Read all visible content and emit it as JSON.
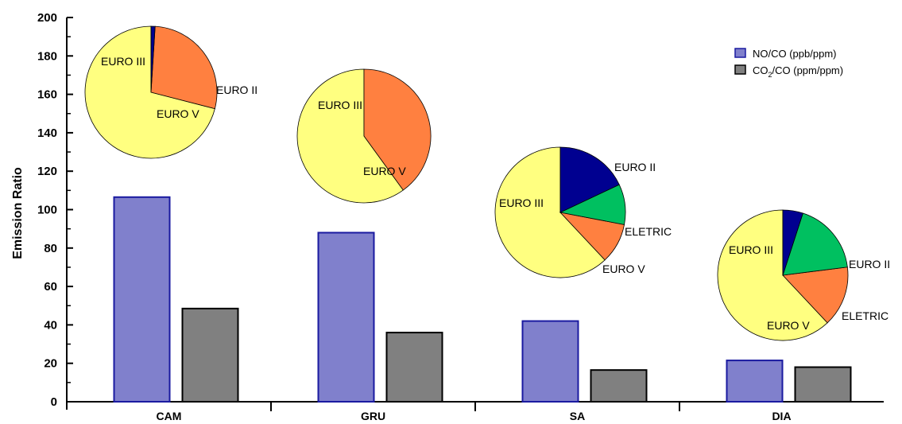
{
  "chart_data": {
    "type": "bar",
    "ylabel": "Emission Ratio",
    "ylim": [
      0,
      200
    ],
    "yticks": [
      0,
      20,
      40,
      60,
      80,
      100,
      120,
      140,
      160,
      180,
      200
    ],
    "grid": false,
    "legend_position": "top-right",
    "categories": [
      "CAM",
      "GRU",
      "SA",
      "DIA"
    ],
    "series": [
      {
        "name": "NO/CO (ppb/ppm)",
        "name_main": "NO/CO (ppb/ppm)",
        "color": "#8080cc",
        "edge_color": "#1a1aa0",
        "values": [
          106.5,
          88,
          42,
          21.5
        ]
      },
      {
        "name": "CO2/CO (ppm/ppm)",
        "name_main": "CO",
        "name_sub": "2",
        "name_rest": "/CO (ppm/ppm)",
        "color": "#808080",
        "edge_color": "#000000",
        "values": [
          48.5,
          36,
          16.5,
          18
        ]
      }
    ],
    "pies": [
      {
        "category": "CAM",
        "slices": [
          {
            "label": "EURO III",
            "value": 71,
            "color": "#ffff80"
          },
          {
            "label": "EURO V",
            "value": 28,
            "color": "#ff8040"
          },
          {
            "label": "EURO II",
            "value": 1,
            "color": "#000090"
          }
        ]
      },
      {
        "category": "GRU",
        "slices": [
          {
            "label": "EURO III",
            "value": 60,
            "color": "#ffff80"
          },
          {
            "label": "EURO V",
            "value": 40,
            "color": "#ff8040"
          }
        ]
      },
      {
        "category": "SA",
        "slices": [
          {
            "label": "EURO III",
            "value": 62,
            "color": "#ffff80"
          },
          {
            "label": "EURO V",
            "value": 10,
            "color": "#ff8040"
          },
          {
            "label": "ELETRIC",
            "value": 10,
            "color": "#00c060"
          },
          {
            "label": "EURO II",
            "value": 18,
            "color": "#000090"
          }
        ]
      },
      {
        "category": "DIA",
        "slices": [
          {
            "label": "EURO III",
            "value": 62,
            "color": "#ffff80"
          },
          {
            "label": "EURO V",
            "value": 15,
            "color": "#ff8040"
          },
          {
            "label": "ELETRIC",
            "value": 18,
            "color": "#00c060"
          },
          {
            "label": "EURO II",
            "value": 5,
            "color": "#000090"
          }
        ]
      }
    ]
  }
}
